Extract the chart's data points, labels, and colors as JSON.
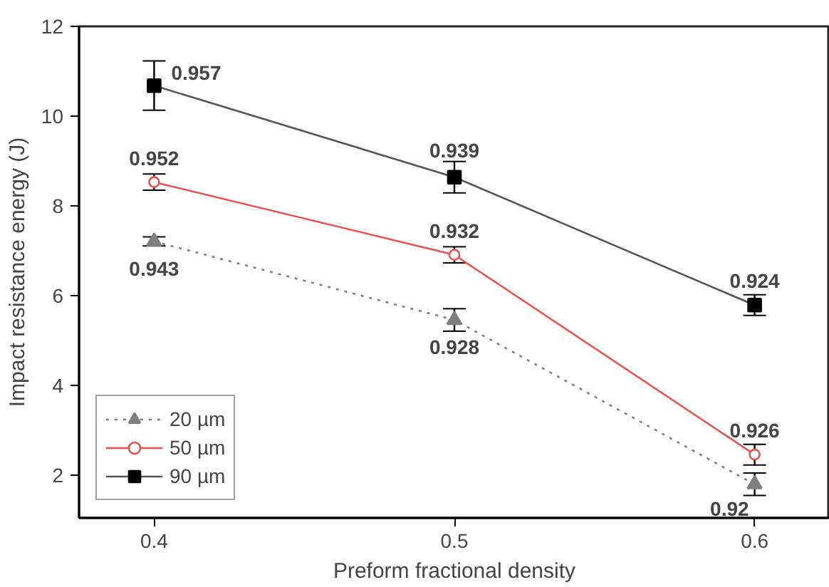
{
  "chart_data": {
    "type": "line",
    "xlabel": "Preform fractional density",
    "ylabel": "Impact resistance energy (J)",
    "x": [
      0.4,
      0.5,
      0.6
    ],
    "xlim": [
      0.375,
      0.625
    ],
    "xticks": [
      0.4,
      0.5,
      0.6
    ],
    "ylim": [
      1.05,
      12
    ],
    "yticks": [
      2,
      4,
      6,
      8,
      10,
      12
    ],
    "grid": false,
    "legend": "bottom left",
    "series": [
      {
        "name": "20 µm",
        "color": "#7f7f7f",
        "marker": "triangle",
        "line_style": "dotted",
        "values": [
          7.21,
          5.46,
          1.8
        ],
        "errors": [
          0.1,
          0.25,
          0.25
        ]
      },
      {
        "name": "50 µm",
        "color": "#e8534f",
        "marker": "circle",
        "line_style": "solid",
        "values": [
          8.53,
          6.91,
          2.46
        ],
        "errors": [
          0.18,
          0.18,
          0.23
        ]
      },
      {
        "name": "90 µm",
        "color": "#000000",
        "marker": "square",
        "line_style": "solid",
        "values": [
          10.68,
          8.64,
          5.79
        ],
        "errors": [
          0.55,
          0.35,
          0.23
        ]
      }
    ],
    "annotations": [
      {
        "text": "0.943",
        "x": 0.4,
        "y": 7.21
      },
      {
        "text": "0.928",
        "x": 0.5,
        "y": 5.46
      },
      {
        "text": "0.92",
        "x": 0.6,
        "y": 1.8
      },
      {
        "text": "0.952",
        "x": 0.4,
        "y": 8.53
      },
      {
        "text": "0.932",
        "x": 0.5,
        "y": 6.91
      },
      {
        "text": "0.926",
        "x": 0.6,
        "y": 2.46
      },
      {
        "text": "0.957",
        "x": 0.4,
        "y": 10.68
      },
      {
        "text": "0.939",
        "x": 0.5,
        "y": 8.64
      },
      {
        "text": "0.924",
        "x": 0.6,
        "y": 5.79
      }
    ]
  }
}
